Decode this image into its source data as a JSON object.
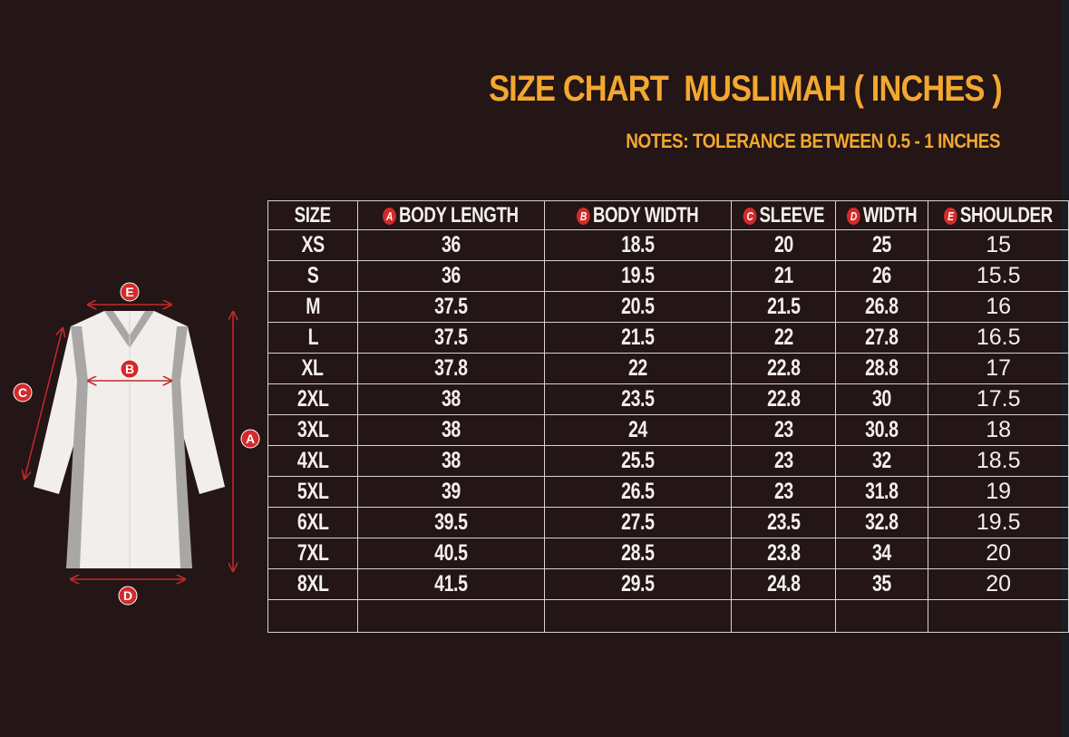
{
  "title": "SIZE CHART  MUSLIMAH ( INCHES )",
  "notes": "NOTES: TOLERANCE BETWEEN 0.5 - 1 INCHES",
  "colors": {
    "background": "#241516",
    "accent": "#f2a830",
    "badge": "#d42a2a"
  },
  "table": {
    "headers": [
      {
        "badge": "",
        "label": "SIZE"
      },
      {
        "badge": "A",
        "label": "BODY LENGTH"
      },
      {
        "badge": "B",
        "label": "BODY WIDTH"
      },
      {
        "badge": "C",
        "label": "SLEEVE"
      },
      {
        "badge": "D",
        "label": "WIDTH"
      },
      {
        "badge": "E",
        "label": "SHOULDER"
      }
    ],
    "rows": [
      [
        "XS",
        "36",
        "18.5",
        "20",
        "25",
        "15"
      ],
      [
        "S",
        "36",
        "19.5",
        "21",
        "26",
        "15.5"
      ],
      [
        "M",
        "37.5",
        "20.5",
        "21.5",
        "26.8",
        "16"
      ],
      [
        "L",
        "37.5",
        "21.5",
        "22",
        "27.8",
        "16.5"
      ],
      [
        "XL",
        "37.8",
        "22",
        "22.8",
        "28.8",
        "17"
      ],
      [
        "2XL",
        "38",
        "23.5",
        "22.8",
        "30",
        "17.5"
      ],
      [
        "3XL",
        "38",
        "24",
        "23",
        "30.8",
        "18"
      ],
      [
        "4XL",
        "38",
        "25.5",
        "23",
        "32",
        "18.5"
      ],
      [
        "5XL",
        "39",
        "26.5",
        "23",
        "31.8",
        "19"
      ],
      [
        "6XL",
        "39.5",
        "27.5",
        "23.5",
        "32.8",
        "19.5"
      ],
      [
        "7XL",
        "40.5",
        "28.5",
        "23.8",
        "34",
        "20"
      ],
      [
        "8XL",
        "41.5",
        "29.5",
        "24.8",
        "35",
        "20"
      ]
    ]
  },
  "diagram": {
    "labels": {
      "a": "A",
      "b": "B",
      "c": "C",
      "d": "D",
      "e": "E"
    }
  }
}
